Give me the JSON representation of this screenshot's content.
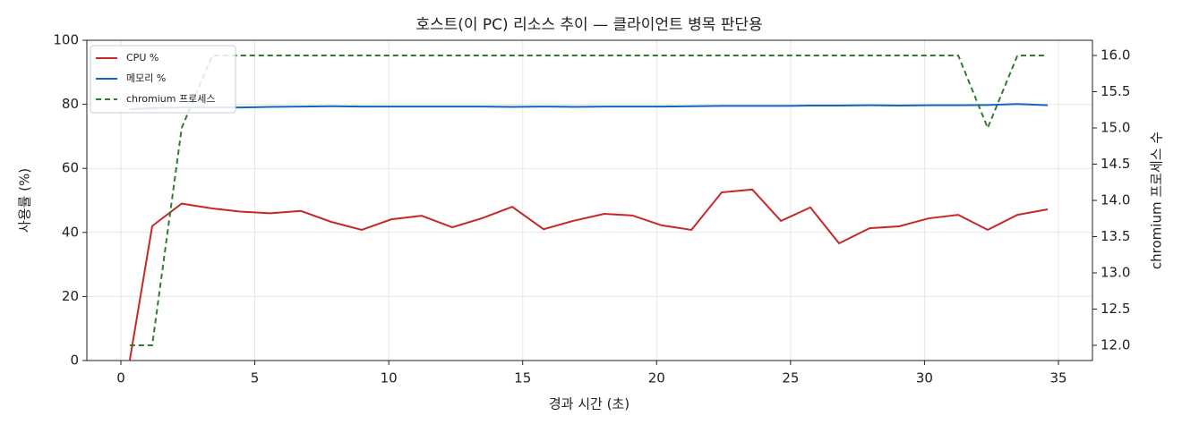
{
  "chart_data": {
    "type": "line",
    "title": "호스트(이 PC) 리소스 추이 — 클라이언트 병목 판단용",
    "x_label": "경과 시간 (초)",
    "y_label": "사용률 (%)",
    "y2_label": "chromium 프로세스 수",
    "x": [
      0.33,
      1.17,
      2.27,
      3.41,
      4.45,
      5.58,
      6.72,
      7.85,
      8.99,
      10.1,
      11.23,
      12.37,
      13.47,
      14.61,
      15.78,
      16.88,
      18.05,
      19.09,
      20.19,
      21.3,
      22.43,
      23.57,
      24.64,
      25.74,
      26.81,
      27.95,
      29.05,
      30.16,
      31.26,
      32.36,
      33.47,
      34.6
    ],
    "series": [
      {
        "name": "CPU %",
        "color": "#c62828",
        "dash": false,
        "values": [
          0,
          42,
          49,
          47.5,
          46.5,
          46,
          46.7,
          43.3,
          40.8,
          44.1,
          45.2,
          41.6,
          44.4,
          48,
          41,
          43.6,
          45.8,
          45.3,
          42.2,
          40.8,
          52.5,
          53.4,
          43.6,
          47.8,
          36.6,
          41.3,
          41.9,
          44.4,
          45.5,
          40.8,
          45.5,
          47.2
        ]
      },
      {
        "name": "메모리 %",
        "color": "#1565c0",
        "dash": false,
        "values": [
          78.5,
          78.8,
          79,
          79,
          79,
          79.2,
          79.3,
          79.4,
          79.3,
          79.3,
          79.3,
          79.3,
          79.3,
          79.2,
          79.3,
          79.2,
          79.3,
          79.3,
          79.3,
          79.4,
          79.5,
          79.5,
          79.5,
          79.6,
          79.6,
          79.7,
          79.6,
          79.7,
          79.7,
          79.8,
          80.1,
          79.7
        ]
      },
      {
        "name": "chromium 프로세스",
        "color": "#2e7d32",
        "dash": true,
        "axis": "y2",
        "values": [
          12,
          12,
          15,
          16,
          16,
          16,
          16,
          16,
          16,
          16,
          16,
          16,
          16,
          16,
          16,
          16,
          16,
          16,
          16,
          16,
          16,
          16,
          16,
          16,
          16,
          16,
          16,
          16,
          16,
          15,
          16,
          16
        ]
      }
    ],
    "xlim": [
      -1.27,
      36.27
    ],
    "xticks": [
      0,
      5,
      10,
      15,
      20,
      25,
      30,
      35
    ],
    "ylim": [
      0,
      100
    ],
    "yticks": [
      0,
      20,
      40,
      60,
      80,
      100
    ],
    "y2lim": [
      11.79,
      16.21
    ],
    "y2ticks": [
      {
        "value": 12,
        "label": "12.0"
      },
      12.5,
      {
        "value": 13,
        "label": "13.0"
      },
      13.5,
      {
        "value": 14,
        "label": "14.0"
      },
      14.5,
      {
        "value": 15,
        "label": "15.0"
      },
      15.5,
      {
        "value": 16,
        "label": "16.0"
      }
    ],
    "grid": true,
    "legend": "upper left"
  }
}
